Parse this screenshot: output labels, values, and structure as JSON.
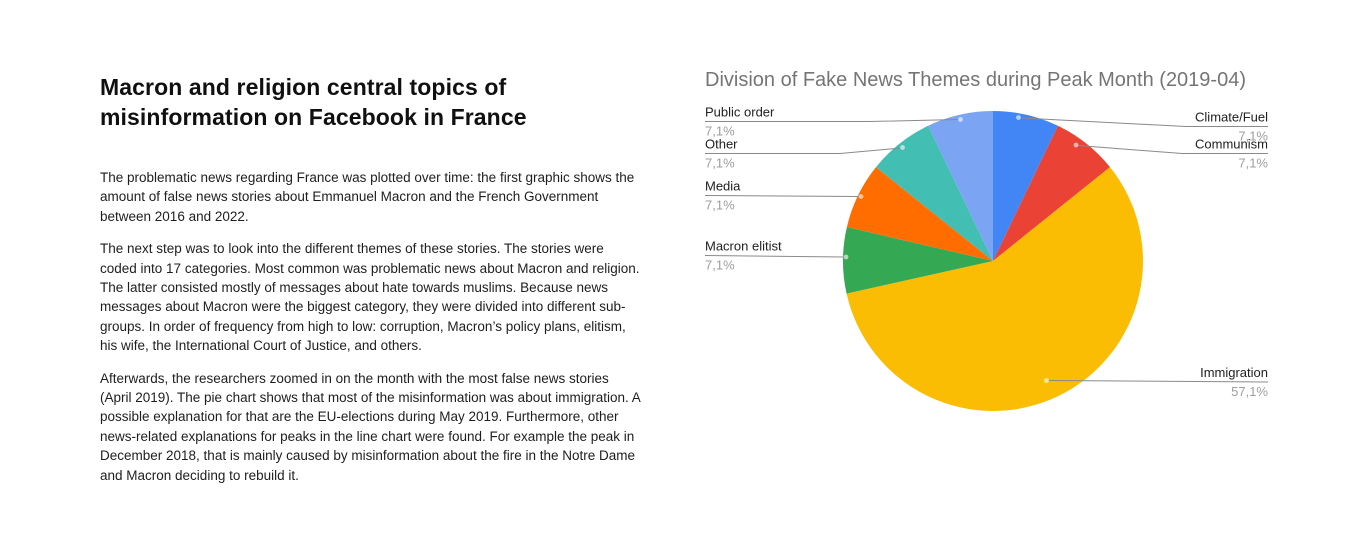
{
  "left_panel": {
    "title": "Macron and religion central topics of misinformation on Facebook in France",
    "paragraphs": [
      "The problematic news regarding France was plotted over time: the first graphic shows the amount of false news stories about Emmanuel Macron and the French Government between 2016 and 2022.",
      "The next step was to look into the different themes of these stories. The stories were coded into 17 categories. Most common was problematic news about Macron and religion. The latter consisted mostly of messages about hate towards muslims. Because news messages about Macron were the biggest category, they were divided into different sub-groups. In order of frequency from high to low: corruption, Macron’s policy plans, elitism, his wife, the International Court of Justice, and others.",
      "Afterwards, the researchers zoomed in on the month with the most false news stories (April 2019). The pie chart shows that most of the misinformation was about immigration. A possible explanation for that are the EU-elections during May 2019. Furthermore, other news-related explanations for peaks in the line chart were found. For example the peak in December 2018, that is mainly caused by misinformation about the fire in the Notre Dame and Macron deciding to rebuild it."
    ]
  },
  "chart_data": {
    "type": "pie",
    "title": "Division of Fake News Themes during Peak Month (2019-04)",
    "legend_position": "none",
    "labels_position": "outside-with-leader-lines",
    "start_angle_deg": 0,
    "direction": "clockwise",
    "unit": "%",
    "slices": [
      {
        "label": "Climate/Fuel",
        "value": 7.1,
        "display": "7,1%",
        "color": "#4285F4",
        "side": "right"
      },
      {
        "label": "Communism",
        "value": 7.1,
        "display": "7,1%",
        "color": "#EA4335",
        "side": "right"
      },
      {
        "label": "Immigration",
        "value": 57.1,
        "display": "57,1%",
        "color": "#FBBC04",
        "side": "right"
      },
      {
        "label": "Macron elitist",
        "value": 7.1,
        "display": "7,1%",
        "color": "#34A853",
        "side": "left"
      },
      {
        "label": "Media",
        "value": 7.1,
        "display": "7,1%",
        "color": "#FF6D01",
        "side": "left"
      },
      {
        "label": "Other",
        "value": 7.1,
        "display": "7,1%",
        "color": "#42BEB2",
        "side": "left"
      },
      {
        "label": "Public order",
        "value": 7.1,
        "display": "7,1%",
        "color": "#7BA4F2",
        "side": "left"
      }
    ]
  }
}
